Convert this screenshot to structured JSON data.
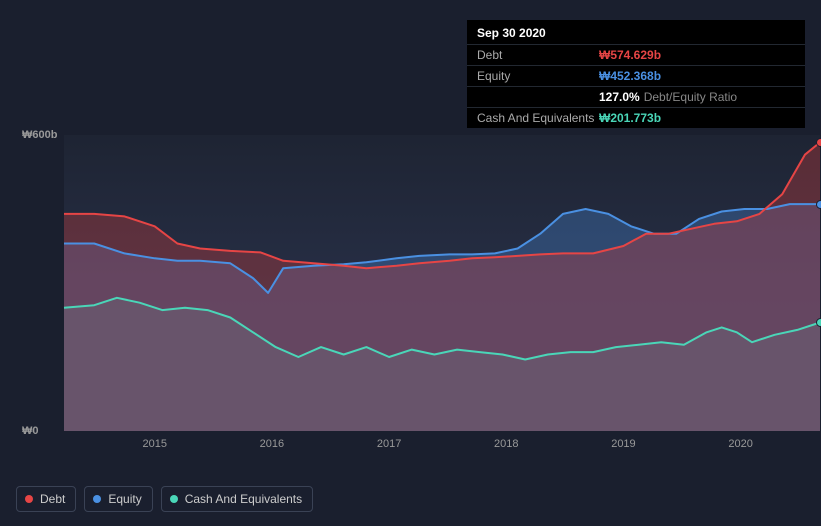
{
  "tooltip": {
    "date": "Sep 30 2020",
    "rows": [
      {
        "label": "Debt",
        "value": "₩574.629b",
        "color": "#e64545"
      },
      {
        "label": "Equity",
        "value": "₩452.368b",
        "color": "#4a90e2"
      },
      {
        "label": "",
        "value": "127.0%",
        "extra": "Debt/Equity Ratio",
        "color": "#ffffff"
      },
      {
        "label": "Cash And Equivalents",
        "value": "₩201.773b",
        "color": "#4ad6b8"
      }
    ]
  },
  "chart": {
    "type": "area",
    "background_top": "#1e2433",
    "background_bottom": "#283048",
    "ylim": [
      0,
      600
    ],
    "y_ticks": [
      {
        "v": 600,
        "label": "₩600b"
      },
      {
        "v": 0,
        "label": "₩0"
      }
    ],
    "x_years": [
      "2015",
      "2016",
      "2017",
      "2018",
      "2019",
      "2020"
    ],
    "x_tick_positions_pct": [
      12,
      27.5,
      43,
      58.5,
      74,
      89.5
    ],
    "series": [
      {
        "name": "Debt",
        "stroke": "#e64545",
        "fill": "rgba(200,60,60,0.35)",
        "end_marker_color": "#e64545",
        "points": [
          [
            0,
            440
          ],
          [
            4,
            440
          ],
          [
            8,
            435
          ],
          [
            12,
            415
          ],
          [
            15,
            380
          ],
          [
            18,
            370
          ],
          [
            22,
            365
          ],
          [
            26,
            362
          ],
          [
            29,
            345
          ],
          [
            33,
            340
          ],
          [
            37,
            335
          ],
          [
            40,
            330
          ],
          [
            44,
            335
          ],
          [
            47,
            340
          ],
          [
            51,
            345
          ],
          [
            54,
            350
          ],
          [
            57,
            352
          ],
          [
            60,
            355
          ],
          [
            63,
            358
          ],
          [
            66,
            360
          ],
          [
            70,
            360
          ],
          [
            74,
            375
          ],
          [
            77,
            400
          ],
          [
            80,
            400
          ],
          [
            83,
            410
          ],
          [
            86,
            420
          ],
          [
            89,
            425
          ],
          [
            92,
            440
          ],
          [
            95,
            480
          ],
          [
            98,
            560
          ],
          [
            100,
            585
          ]
        ]
      },
      {
        "name": "Equity",
        "stroke": "#4a90e2",
        "fill": "rgba(74,144,226,0.30)",
        "end_marker_color": "#4a90e2",
        "points": [
          [
            0,
            380
          ],
          [
            4,
            380
          ],
          [
            8,
            360
          ],
          [
            12,
            350
          ],
          [
            15,
            345
          ],
          [
            18,
            345
          ],
          [
            22,
            340
          ],
          [
            25,
            310
          ],
          [
            27,
            280
          ],
          [
            29,
            330
          ],
          [
            33,
            335
          ],
          [
            37,
            338
          ],
          [
            40,
            342
          ],
          [
            44,
            350
          ],
          [
            47,
            355
          ],
          [
            51,
            358
          ],
          [
            54,
            358
          ],
          [
            57,
            360
          ],
          [
            60,
            370
          ],
          [
            63,
            400
          ],
          [
            66,
            440
          ],
          [
            69,
            450
          ],
          [
            72,
            440
          ],
          [
            75,
            415
          ],
          [
            78,
            400
          ],
          [
            81,
            400
          ],
          [
            84,
            430
          ],
          [
            87,
            445
          ],
          [
            90,
            450
          ],
          [
            93,
            450
          ],
          [
            96,
            460
          ],
          [
            100,
            460
          ]
        ]
      },
      {
        "name": "Cash And Equivalents",
        "stroke": "#4ad6b8",
        "fill": "rgba(74,214,184,0.18)",
        "end_marker_color": "#4ad6b8",
        "points": [
          [
            0,
            250
          ],
          [
            4,
            255
          ],
          [
            7,
            270
          ],
          [
            10,
            260
          ],
          [
            13,
            245
          ],
          [
            16,
            250
          ],
          [
            19,
            245
          ],
          [
            22,
            230
          ],
          [
            25,
            200
          ],
          [
            28,
            170
          ],
          [
            31,
            150
          ],
          [
            34,
            170
          ],
          [
            37,
            155
          ],
          [
            40,
            170
          ],
          [
            43,
            150
          ],
          [
            46,
            165
          ],
          [
            49,
            155
          ],
          [
            52,
            165
          ],
          [
            55,
            160
          ],
          [
            58,
            155
          ],
          [
            61,
            145
          ],
          [
            64,
            155
          ],
          [
            67,
            160
          ],
          [
            70,
            160
          ],
          [
            73,
            170
          ],
          [
            76,
            175
          ],
          [
            79,
            180
          ],
          [
            82,
            175
          ],
          [
            85,
            200
          ],
          [
            87,
            210
          ],
          [
            89,
            200
          ],
          [
            91,
            180
          ],
          [
            94,
            195
          ],
          [
            97,
            205
          ],
          [
            100,
            220
          ]
        ]
      }
    ]
  },
  "legend": {
    "items": [
      {
        "label": "Debt",
        "color": "#e64545"
      },
      {
        "label": "Equity",
        "color": "#4a90e2"
      },
      {
        "label": "Cash And Equivalents",
        "color": "#4ad6b8"
      }
    ]
  },
  "axis_label_color": "#999",
  "axis_font_size": 11
}
